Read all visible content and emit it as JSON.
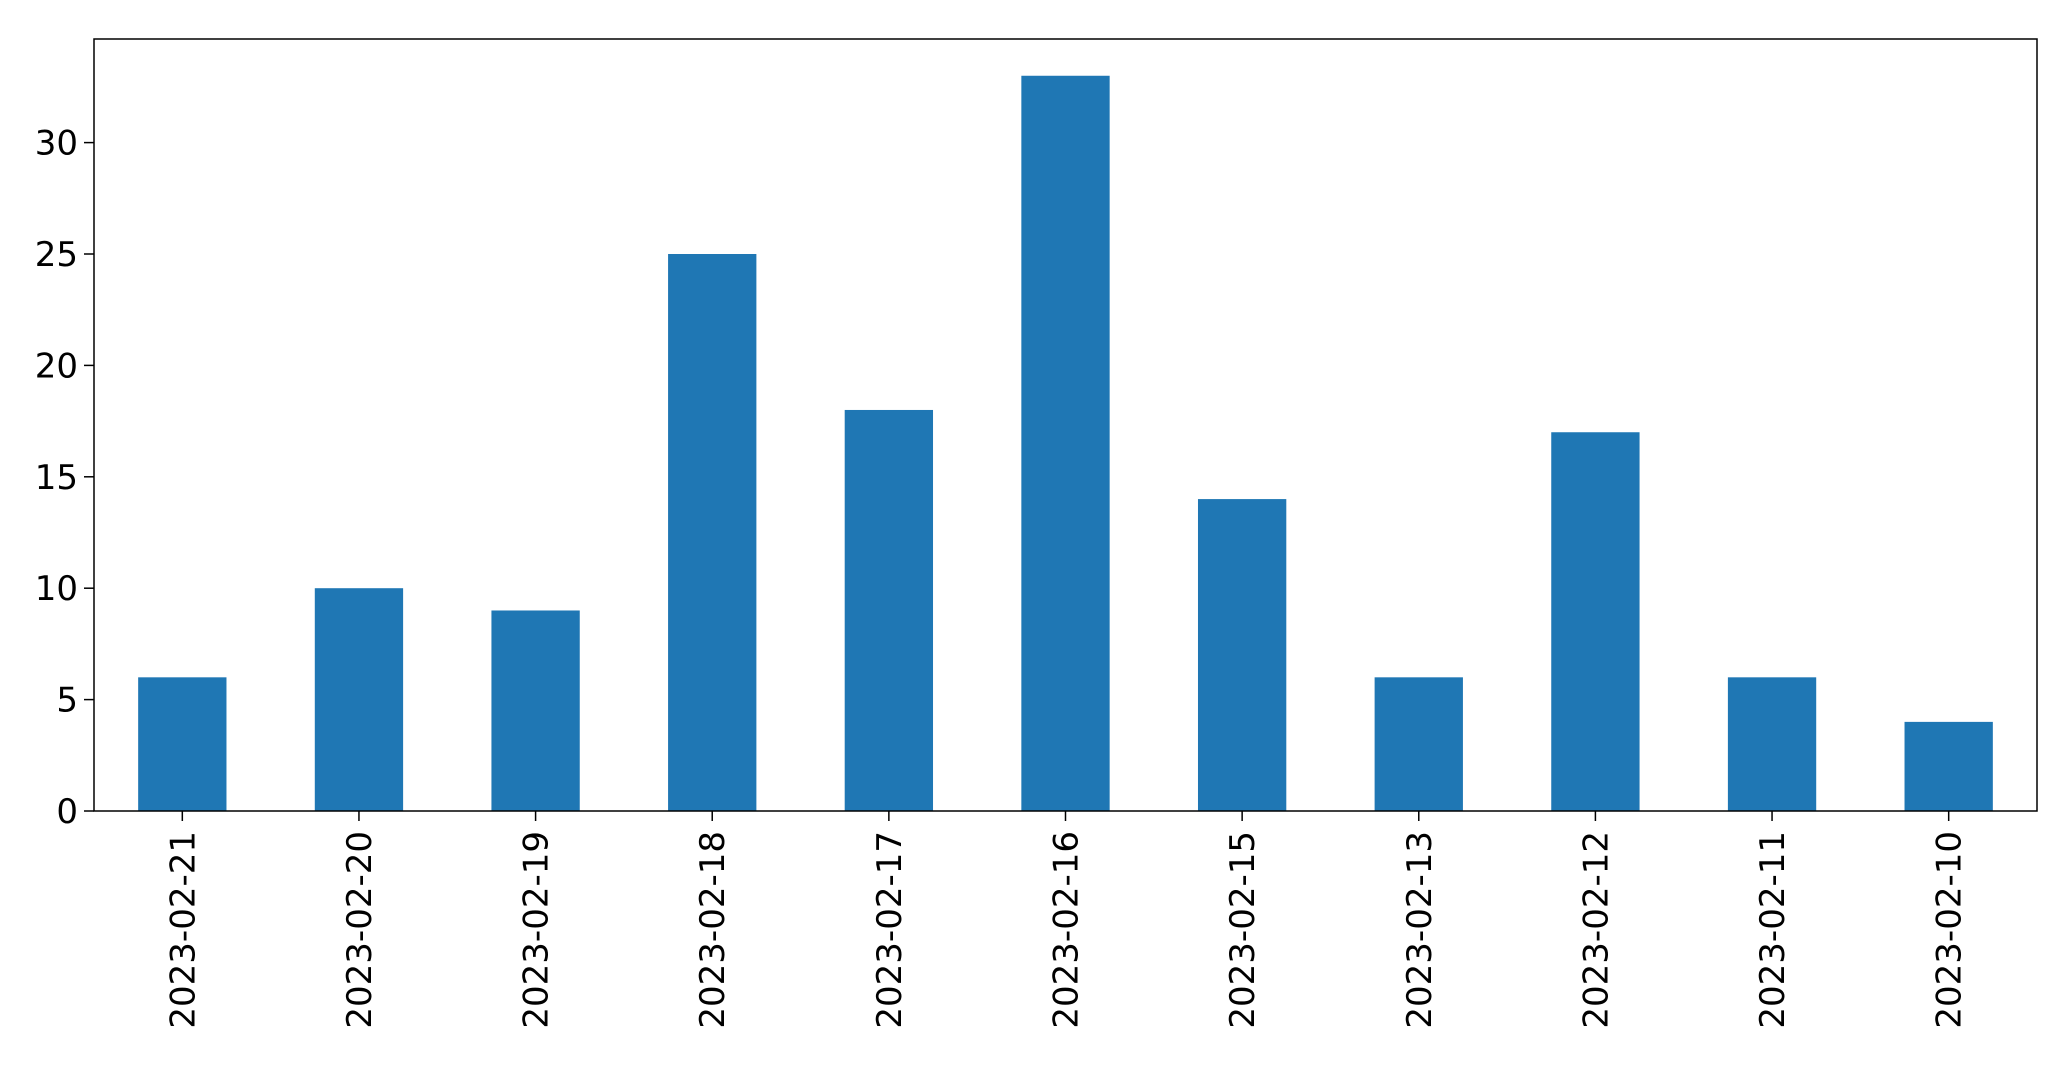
{
  "chart_data": {
    "type": "bar",
    "title": "",
    "xlabel": "",
    "ylabel": "",
    "categories": [
      "2023-02-21",
      "2023-02-20",
      "2023-02-19",
      "2023-02-18",
      "2023-02-17",
      "2023-02-16",
      "2023-02-15",
      "2023-02-13",
      "2023-02-12",
      "2023-02-11",
      "2023-02-10"
    ],
    "values": [
      6,
      10,
      9,
      25,
      18,
      33,
      14,
      6,
      17,
      6,
      4
    ],
    "ylim": [
      0,
      34.65
    ],
    "yticks": [
      "0",
      "5",
      "10",
      "15",
      "20",
      "25",
      "30"
    ],
    "grid": false,
    "legend": "none",
    "colors": {
      "bar": "#1f77b4",
      "axis": "#000000",
      "background": "#ffffff"
    }
  }
}
